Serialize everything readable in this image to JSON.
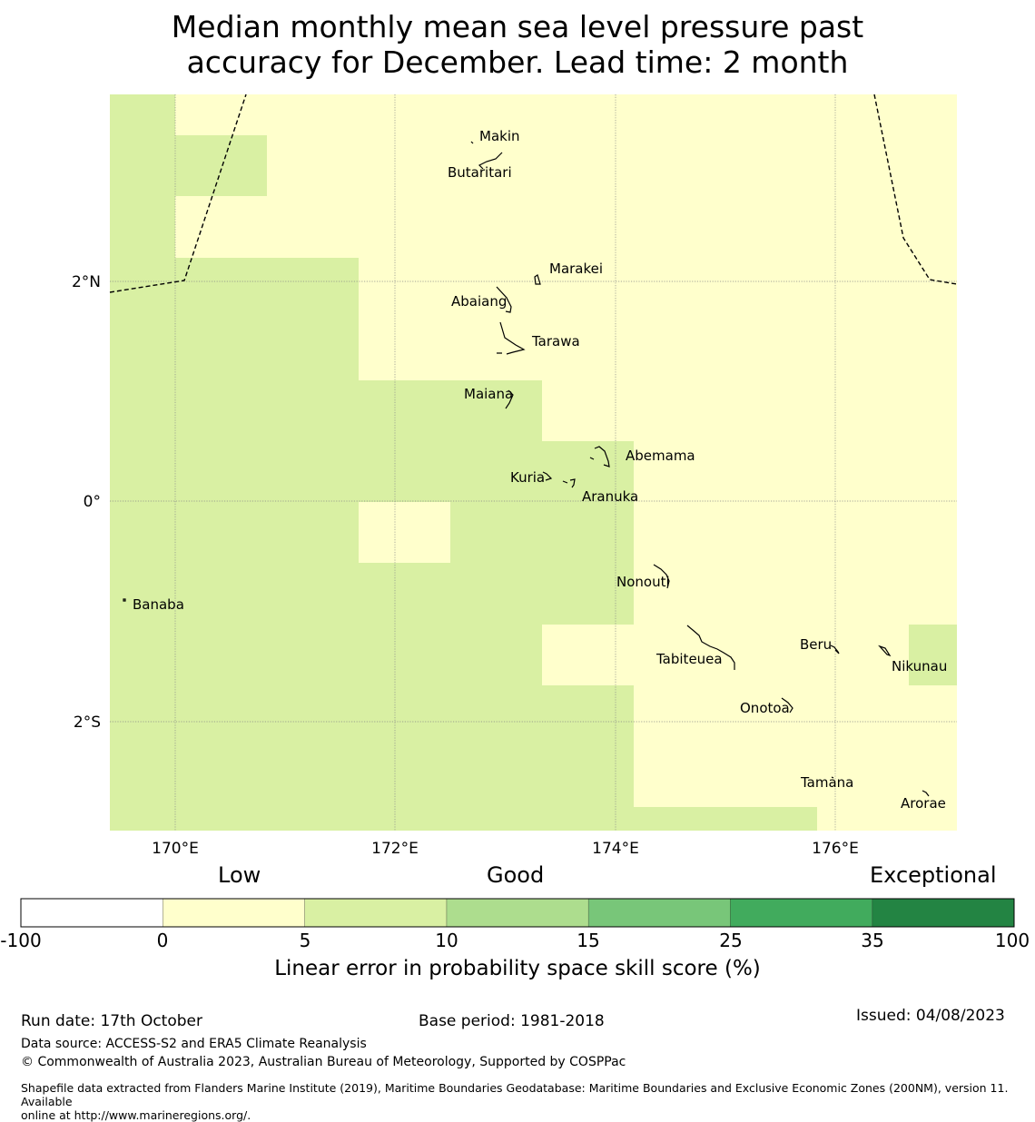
{
  "title": {
    "line1": "Median monthly mean sea level pressure past",
    "line2": "accuracy for December. Lead time: 2 month"
  },
  "map": {
    "lon_range": [
      169.4,
      177.1
    ],
    "lat_range": [
      -3.0,
      3.7
    ],
    "lon_ticks": [
      {
        "value": 170,
        "label": "170°E"
      },
      {
        "value": 172,
        "label": "172°E"
      },
      {
        "value": 174,
        "label": "174°E"
      },
      {
        "value": 176,
        "label": "176°E"
      }
    ],
    "lat_ticks": [
      {
        "value": 2,
        "label": "2°N"
      },
      {
        "value": 0,
        "label": "0°"
      },
      {
        "value": -2,
        "label": "2°S"
      }
    ],
    "cell_classes": {
      "low": {
        "range": "0-5",
        "color": "#ffffcc"
      },
      "good_5_10": {
        "range": "5-10",
        "color": "#d9f0a3"
      }
    },
    "places": [
      {
        "name": "Makin",
        "lon": 173.0,
        "lat": 3.3
      },
      {
        "name": "Butaritari",
        "lon": 172.85,
        "lat": 3.05
      },
      {
        "name": "Marakei",
        "lon": 173.35,
        "lat": 2.0
      },
      {
        "name": "Abaiang",
        "lon": 172.95,
        "lat": 1.8
      },
      {
        "name": "Tarawa",
        "lon": 173.05,
        "lat": 1.45
      },
      {
        "name": "Maiana",
        "lon": 173.05,
        "lat": 0.9
      },
      {
        "name": "Abemama",
        "lon": 173.9,
        "lat": 0.4
      },
      {
        "name": "Kuria",
        "lon": 173.4,
        "lat": 0.22
      },
      {
        "name": "Aranuka",
        "lon": 173.65,
        "lat": 0.15
      },
      {
        "name": "Nonouti",
        "lon": 174.45,
        "lat": -0.65
      },
      {
        "name": "Banaba",
        "lon": 169.55,
        "lat": -0.87
      },
      {
        "name": "Tabiteuea",
        "lon": 174.9,
        "lat": -1.35
      },
      {
        "name": "Beru",
        "lon": 176.0,
        "lat": -1.35
      },
      {
        "name": "Nikunau",
        "lon": 176.45,
        "lat": -1.35
      },
      {
        "name": "Onotoa",
        "lon": 175.55,
        "lat": -1.85
      },
      {
        "name": "Tamana",
        "lon": 175.98,
        "lat": -2.5
      },
      {
        "name": "Arorae",
        "lon": 176.82,
        "lat": -2.65
      }
    ]
  },
  "colorbar": {
    "heading_low": "Low",
    "heading_good": "Good",
    "heading_exceptional": "Exceptional",
    "bins": [
      {
        "from": "-100",
        "to": "0",
        "color": "#ffffff"
      },
      {
        "from": "0",
        "to": "5",
        "color": "#ffffcc"
      },
      {
        "from": "5",
        "to": "10",
        "color": "#d9f0a3"
      },
      {
        "from": "10",
        "to": "15",
        "color": "#addd8e"
      },
      {
        "from": "15",
        "to": "25",
        "color": "#78c679"
      },
      {
        "from": "25",
        "to": "35",
        "color": "#41ab5d"
      },
      {
        "from": "35",
        "to": "100",
        "color": "#238443"
      }
    ],
    "tick_labels": [
      "-100",
      "0",
      "5",
      "10",
      "15",
      "25",
      "35",
      "100"
    ],
    "label": "Linear error in probability space skill score (%)"
  },
  "footer": {
    "run_date": "Run date: 17th October",
    "base_period": "Base period: 1981-2018",
    "issued": "Issued: 04/08/2023",
    "data_source": "Data source: ACCESS-S2 and ERA5 Climate Reanalysis",
    "copyright": "© Commonwealth of Australia 2023, Australian Bureau of Meteorology, Supported by COSPPac",
    "shapefile_line1": "Shapefile data extracted from Flanders Marine Institute (2019), Maritime Boundaries Geodatabase: Maritime Boundaries and Exclusive Economic Zones (200NM), version 11. Available",
    "shapefile_line2": "online at http://www.marineregions.org/."
  }
}
